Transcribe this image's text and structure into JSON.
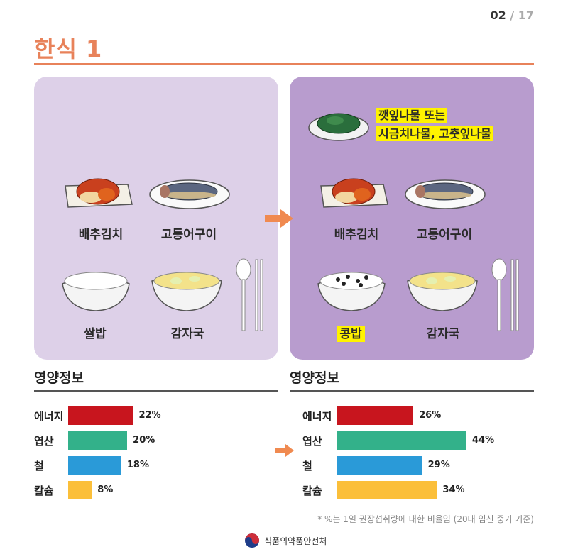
{
  "page": {
    "current": "02",
    "separator": " / ",
    "total": "17"
  },
  "title": "한식 1",
  "left_panel": {
    "foods": [
      "배추김치",
      "고등어구이",
      "쌀밥",
      "감자국"
    ]
  },
  "right_panel": {
    "extra_lines": [
      "깻잎나물 또는",
      "시금치나물, 고춧잎나물"
    ],
    "foods": [
      "배추김치",
      "고등어구이",
      "콩밥",
      "감자국"
    ]
  },
  "nutrition_heading": "영양정보",
  "chart_data": [
    {
      "type": "bar",
      "orientation": "horizontal",
      "categories": [
        "에너지",
        "엽산",
        "철",
        "칼슘"
      ],
      "values": [
        22,
        20,
        18,
        8
      ],
      "value_labels": [
        "22%",
        "20%",
        "18%",
        "8%"
      ],
      "colors": [
        "#c8151e",
        "#33b18a",
        "#2a9ad8",
        "#fbbf3a"
      ]
    },
    {
      "type": "bar",
      "orientation": "horizontal",
      "categories": [
        "에너지",
        "엽산",
        "철",
        "칼슘"
      ],
      "values": [
        26,
        44,
        29,
        34
      ],
      "value_labels": [
        "26%",
        "44%",
        "29%",
        "34%"
      ],
      "colors": [
        "#c8151e",
        "#33b18a",
        "#2a9ad8",
        "#fbbf3a"
      ]
    }
  ],
  "footnote": "* %는 1일 권장섭취량에 대한 비율임 (20대 임신 중기 기준)",
  "logo_text": "식품의약품안전처",
  "colors": {
    "accent": "#e8825a",
    "panel_left": "#ddd0e8",
    "panel_right": "#b89cce",
    "highlight": "#fff300"
  }
}
